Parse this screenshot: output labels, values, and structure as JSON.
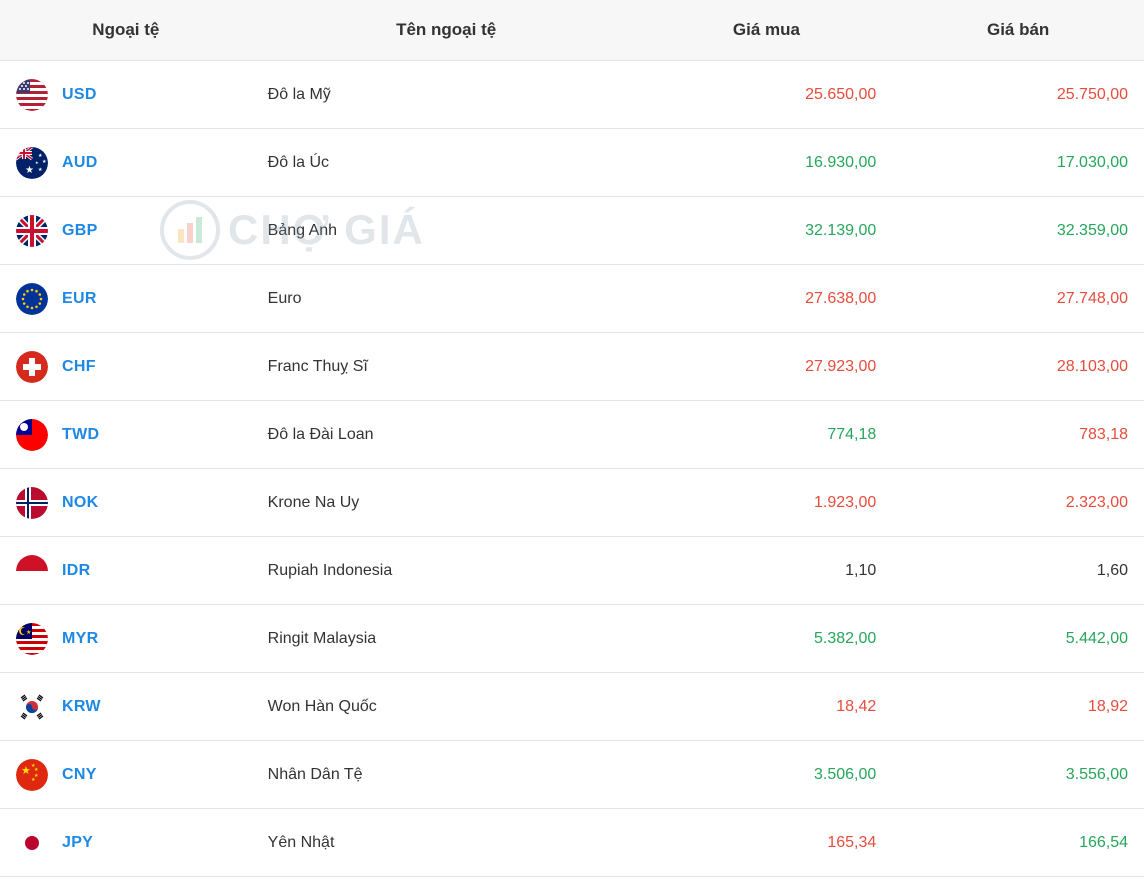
{
  "colors": {
    "header_bg": "#f7f7f7",
    "border": "#e5e5e5",
    "link": "#1e88e5",
    "up": "#26a65b",
    "down": "#e74c3c",
    "flat": "#333333",
    "text": "#333333",
    "background": "#ffffff"
  },
  "watermark": "CHỢ GIÁ",
  "table": {
    "columns": [
      "Ngoại tệ",
      "Tên ngoại tệ",
      "Giá mua",
      "Giá bán"
    ],
    "rows": [
      {
        "code": "USD",
        "name": "Đô la Mỹ",
        "buy": "25.650,00",
        "buy_trend": "down",
        "sell": "25.750,00",
        "sell_trend": "down",
        "flag": "us"
      },
      {
        "code": "AUD",
        "name": "Đô la Úc",
        "buy": "16.930,00",
        "buy_trend": "up",
        "sell": "17.030,00",
        "sell_trend": "up",
        "flag": "au"
      },
      {
        "code": "GBP",
        "name": "Bảng Anh",
        "buy": "32.139,00",
        "buy_trend": "up",
        "sell": "32.359,00",
        "sell_trend": "up",
        "flag": "gb"
      },
      {
        "code": "EUR",
        "name": "Euro",
        "buy": "27.638,00",
        "buy_trend": "down",
        "sell": "27.748,00",
        "sell_trend": "down",
        "flag": "eu"
      },
      {
        "code": "CHF",
        "name": "Franc Thuỵ Sĩ",
        "buy": "27.923,00",
        "buy_trend": "down",
        "sell": "28.103,00",
        "sell_trend": "down",
        "flag": "ch"
      },
      {
        "code": "TWD",
        "name": "Đô la Đài Loan",
        "buy": "774,18",
        "buy_trend": "up",
        "sell": "783,18",
        "sell_trend": "down",
        "flag": "tw"
      },
      {
        "code": "NOK",
        "name": "Krone Na Uy",
        "buy": "1.923,00",
        "buy_trend": "down",
        "sell": "2.323,00",
        "sell_trend": "down",
        "flag": "no"
      },
      {
        "code": "IDR",
        "name": "Rupiah Indonesia",
        "buy": "1,10",
        "buy_trend": "flat",
        "sell": "1,60",
        "sell_trend": "flat",
        "flag": "id"
      },
      {
        "code": "MYR",
        "name": "Ringit Malaysia",
        "buy": "5.382,00",
        "buy_trend": "up",
        "sell": "5.442,00",
        "sell_trend": "up",
        "flag": "my"
      },
      {
        "code": "KRW",
        "name": "Won Hàn Quốc",
        "buy": "18,42",
        "buy_trend": "down",
        "sell": "18,92",
        "sell_trend": "down",
        "flag": "kr"
      },
      {
        "code": "CNY",
        "name": "Nhân Dân Tệ",
        "buy": "3.506,00",
        "buy_trend": "up",
        "sell": "3.556,00",
        "sell_trend": "up",
        "flag": "cn"
      },
      {
        "code": "JPY",
        "name": "Yên Nhật",
        "buy": "165,34",
        "buy_trend": "down",
        "sell": "166,54",
        "sell_trend": "up",
        "flag": "jp"
      }
    ]
  }
}
